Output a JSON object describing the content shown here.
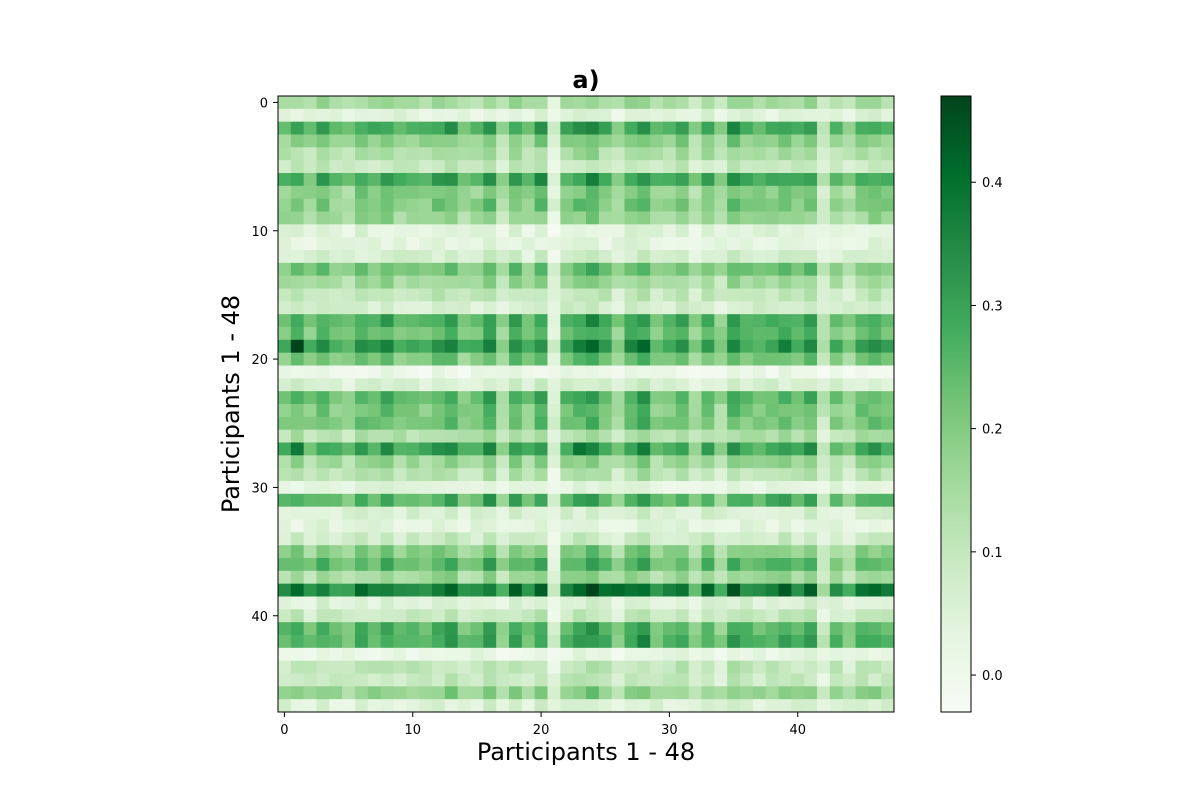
{
  "chart_data": {
    "type": "heatmap",
    "title": "a)",
    "xlabel": "Participants 1 - 48",
    "ylabel": "Participants 1 - 48",
    "rows": 48,
    "cols": 48,
    "x_ticks": [
      0,
      10,
      20,
      30,
      40
    ],
    "y_ticks": [
      0,
      10,
      20,
      30,
      40
    ],
    "colormap": "Greens",
    "colorbar": {
      "min": -0.03,
      "max": 0.47,
      "ticks": [
        0.0,
        0.1,
        0.2,
        0.3,
        0.4
      ],
      "tick_labels": [
        "0.0",
        "0.1",
        "0.2",
        "0.3",
        "0.4"
      ]
    },
    "row_base": [
      0.14,
      0.04,
      0.27,
      0.18,
      0.13,
      0.09,
      0.27,
      0.19,
      0.2,
      0.16,
      0.04,
      0.03,
      0.06,
      0.21,
      0.15,
      0.1,
      0.07,
      0.26,
      0.23,
      0.3,
      0.21,
      0.01,
      0.06,
      0.24,
      0.21,
      0.21,
      0.13,
      0.28,
      0.16,
      0.11,
      0.03,
      0.25,
      0.06,
      0.03,
      0.08,
      0.18,
      0.24,
      0.15,
      0.36,
      0.05,
      0.09,
      0.25,
      0.26,
      0.02,
      0.1,
      0.09,
      0.17,
      0.05
    ],
    "col_factor": [
      0.95,
      1.1,
      0.85,
      1.1,
      0.9,
      0.8,
      1.1,
      1.0,
      1.15,
      0.95,
      1.0,
      0.95,
      1.1,
      1.2,
      0.85,
      0.9,
      1.25,
      0.7,
      1.15,
      0.9,
      1.2,
      0.25,
      1.05,
      1.15,
      1.3,
      1.05,
      0.75,
      1.15,
      1.3,
      0.9,
      0.95,
      1.1,
      0.7,
      1.1,
      0.7,
      1.2,
      1.0,
      0.95,
      1.05,
      1.15,
      1.0,
      1.15,
      0.45,
      0.95,
      0.7,
      1.05,
      1.1,
      1.0
    ],
    "highlights": [
      {
        "row": 19,
        "col": 1,
        "value": 0.47
      },
      {
        "row": 19,
        "col": 3,
        "value": 0.35
      },
      {
        "row": 38,
        "col": 25,
        "value": 0.4
      },
      {
        "row": 38,
        "col": 26,
        "value": 0.41
      },
      {
        "row": 38,
        "col": 28,
        "value": 0.4
      },
      {
        "row": 38,
        "col": 31,
        "value": 0.39
      },
      {
        "row": 27,
        "col": 1,
        "value": 0.38
      },
      {
        "row": 27,
        "col": 23,
        "value": 0.39
      },
      {
        "row": 6,
        "col": 20,
        "value": 0.36
      },
      {
        "row": 2,
        "col": 35,
        "value": 0.36
      },
      {
        "row": 38,
        "col": 8,
        "value": 0.37
      },
      {
        "row": 38,
        "col": 16,
        "value": 0.37
      }
    ]
  }
}
